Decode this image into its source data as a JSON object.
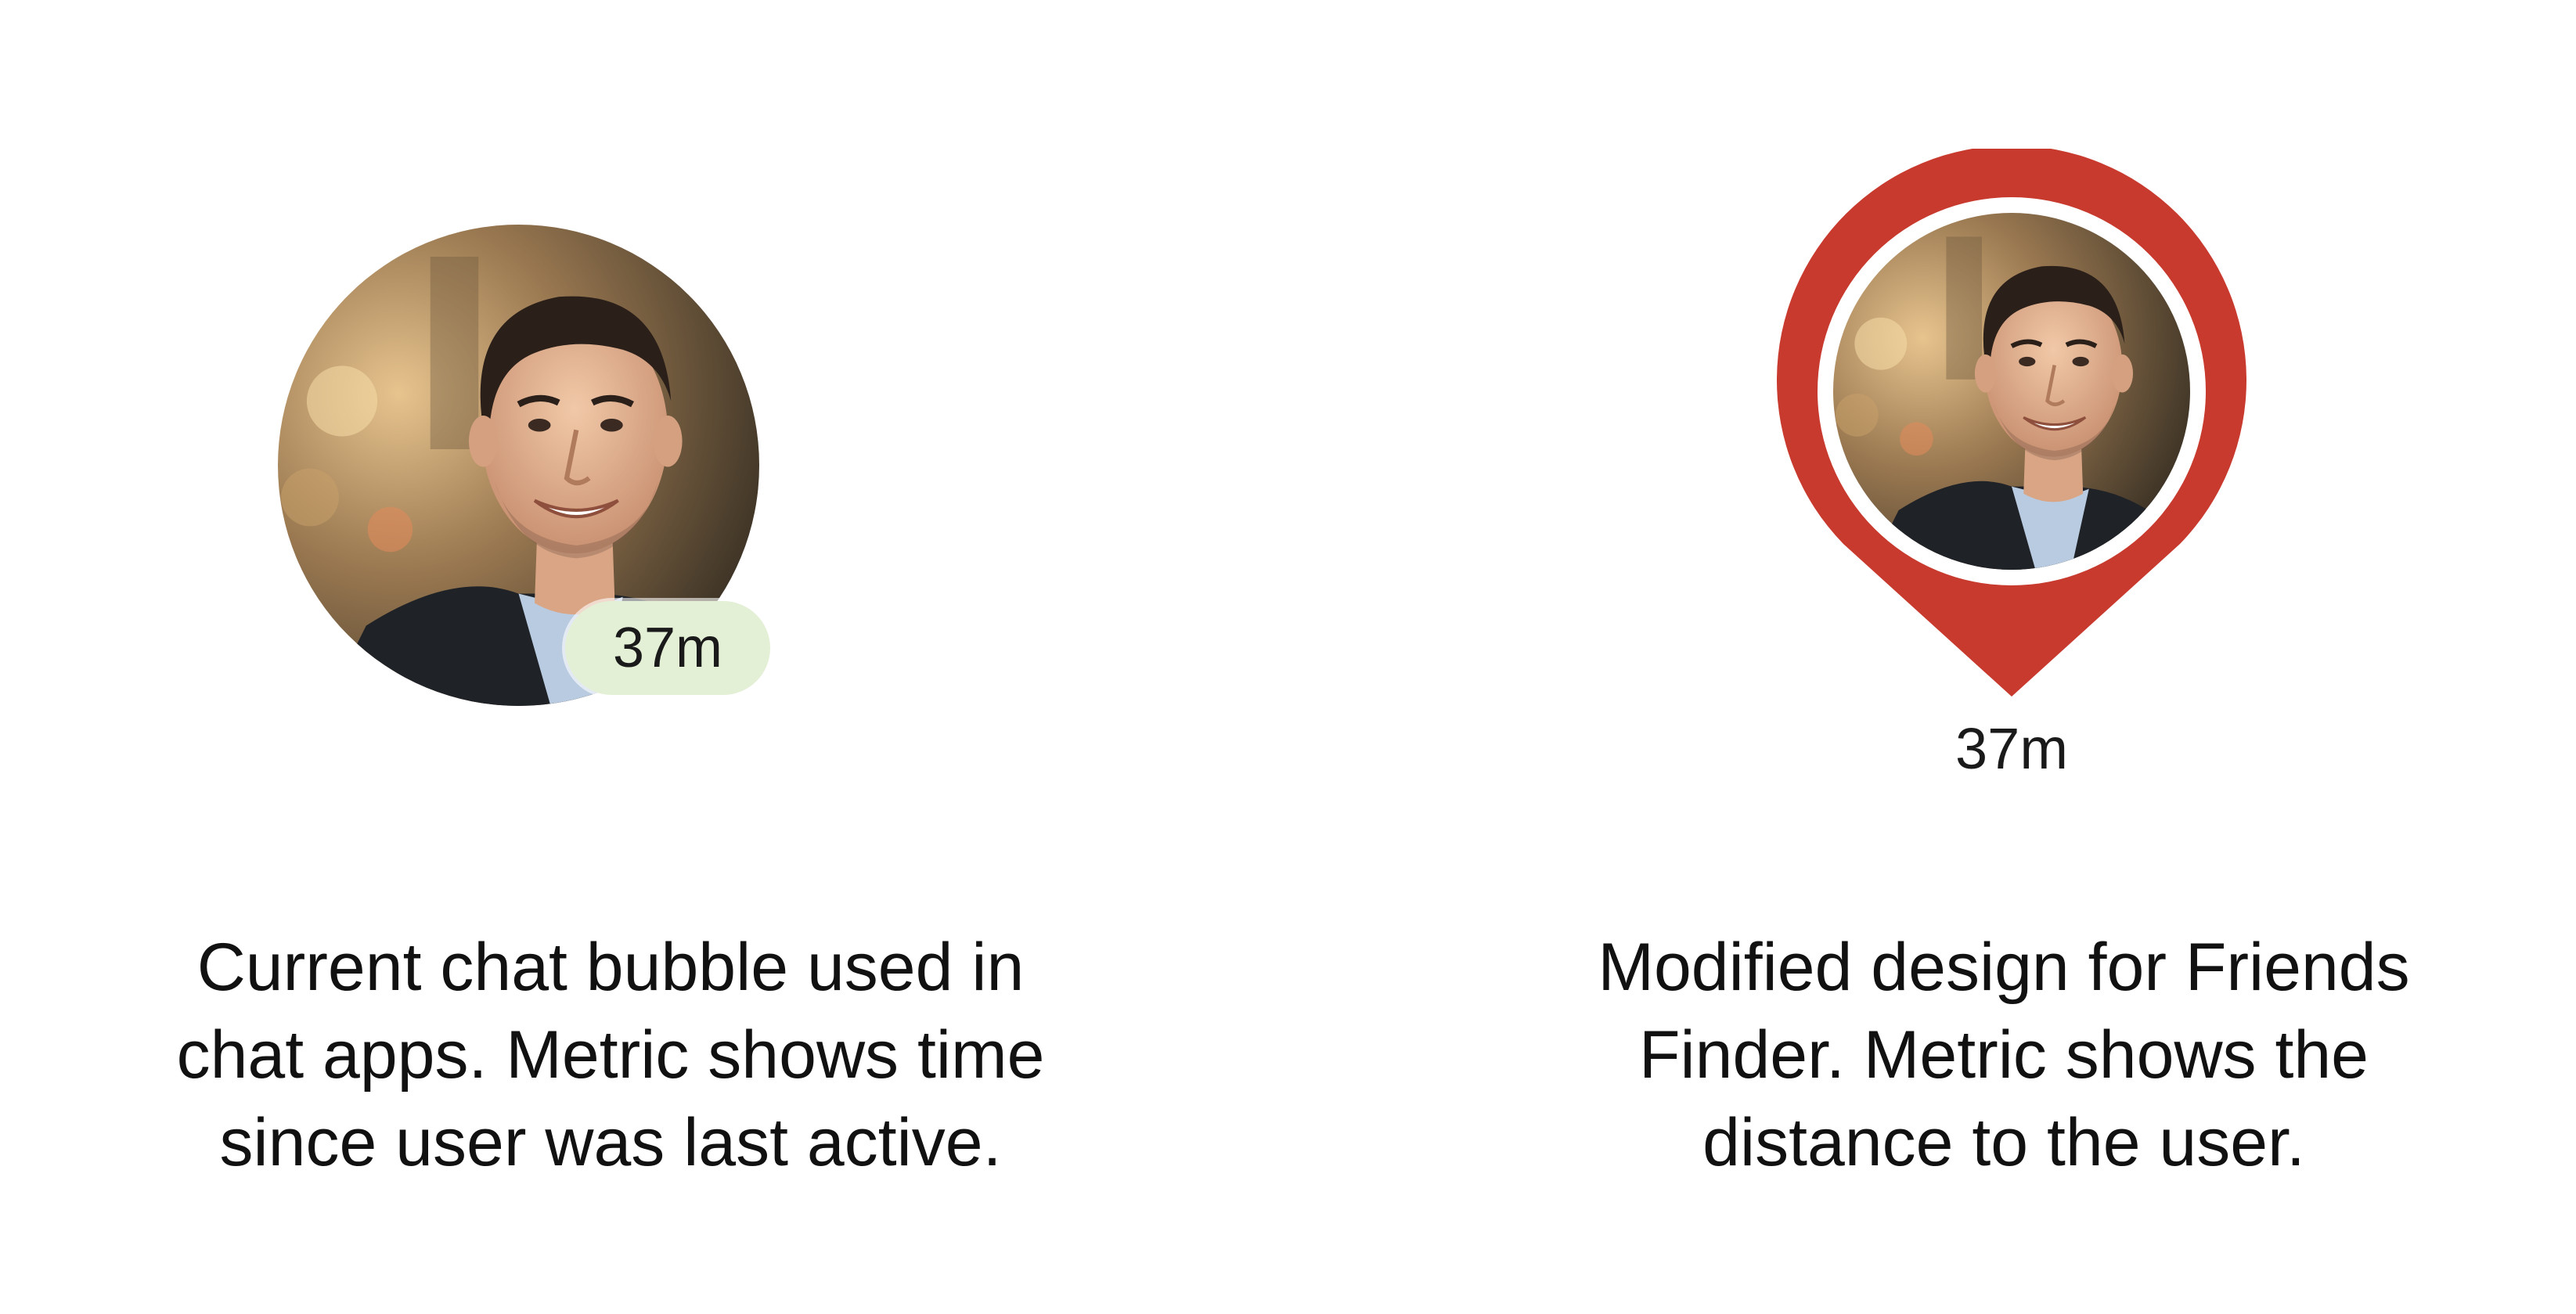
{
  "left": {
    "badge_text": "37m",
    "badge_color": "#e3f0d5",
    "caption_lines": [
      "Current chat bubble used in",
      "chat apps. Metric shows time",
      "since user was last active."
    ]
  },
  "right": {
    "pin_color": "#c8392e",
    "distance_text": "37m",
    "caption_lines": [
      "Modified design for Friends",
      "Finder. Metric shows the",
      "distance to the user."
    ]
  }
}
